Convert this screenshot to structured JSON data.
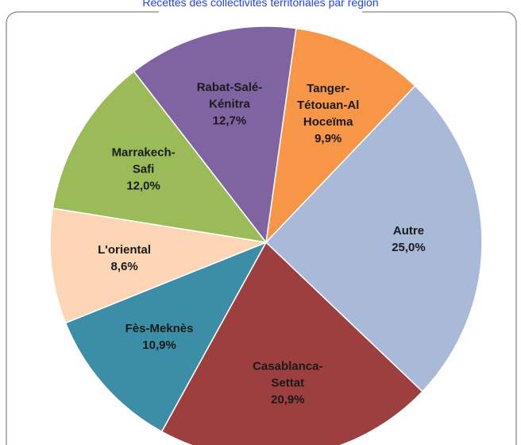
{
  "chart_data": {
    "type": "pie",
    "title": "Recettes des collectivités territoriales par région",
    "categories": [
      "Tanger-Tétouan-Al Hoceïma",
      "Autre",
      "Casablanca-Settat",
      "Fès-Meknès",
      "L'oriental",
      "Marrakech-Safi",
      "Rabat-Salé-Kénitra"
    ],
    "values": [
      9.9,
      25.0,
      20.9,
      10.9,
      8.6,
      12.0,
      12.7
    ],
    "value_labels": [
      "9,9%",
      "25,0%",
      "20,9%",
      "10,9%",
      "8,6%",
      "12,0%",
      "12,7%"
    ],
    "colors": [
      "#f79646",
      "#a9b9d8",
      "#9c3f3e",
      "#3b8ea5",
      "#fcd5b5",
      "#9bbb59",
      "#8064a2"
    ]
  }
}
